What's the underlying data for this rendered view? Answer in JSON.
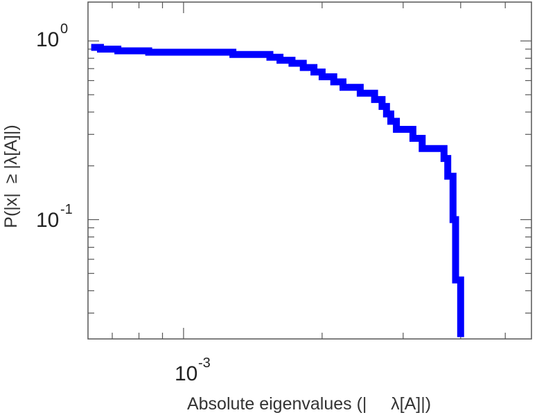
{
  "chart_data": {
    "type": "line",
    "line_shape": "step",
    "title": "",
    "xlabel": "Absolute eigenvalues (|     λ[A]|)",
    "ylabel": "P(|x|  ≥ |λ[A]|)",
    "xscale": "log",
    "yscale": "log",
    "xlim": [
      0.00062,
      0.0057
    ],
    "ylim": [
      0.0215,
      1.65
    ],
    "grid": false,
    "legend": "none",
    "x_major_ticks": [
      {
        "value": 0.001,
        "base": "10",
        "exp": "-3"
      }
    ],
    "y_major_ticks": [
      {
        "value": 1,
        "base": "10",
        "exp": "0"
      },
      {
        "value": 0.1,
        "base": "10",
        "exp": "-1"
      }
    ],
    "series": [
      {
        "color": "#0000ff",
        "x": [
          0.00063,
          0.00066,
          0.00072,
          0.00084,
          0.00128,
          0.00154,
          0.00162,
          0.00172,
          0.00182,
          0.00192,
          0.002,
          0.00212,
          0.00222,
          0.00242,
          0.0026,
          0.0027,
          0.00276,
          0.00282,
          0.0029,
          0.00315,
          0.0033,
          0.00368,
          0.00375,
          0.00385,
          0.0039,
          0.004
        ],
        "y": [
          0.92,
          0.9,
          0.88,
          0.865,
          0.84,
          0.81,
          0.78,
          0.75,
          0.71,
          0.67,
          0.63,
          0.59,
          0.55,
          0.51,
          0.47,
          0.43,
          0.39,
          0.355,
          0.32,
          0.285,
          0.25,
          0.22,
          0.175,
          0.1,
          0.046,
          0.022
        ]
      }
    ]
  }
}
